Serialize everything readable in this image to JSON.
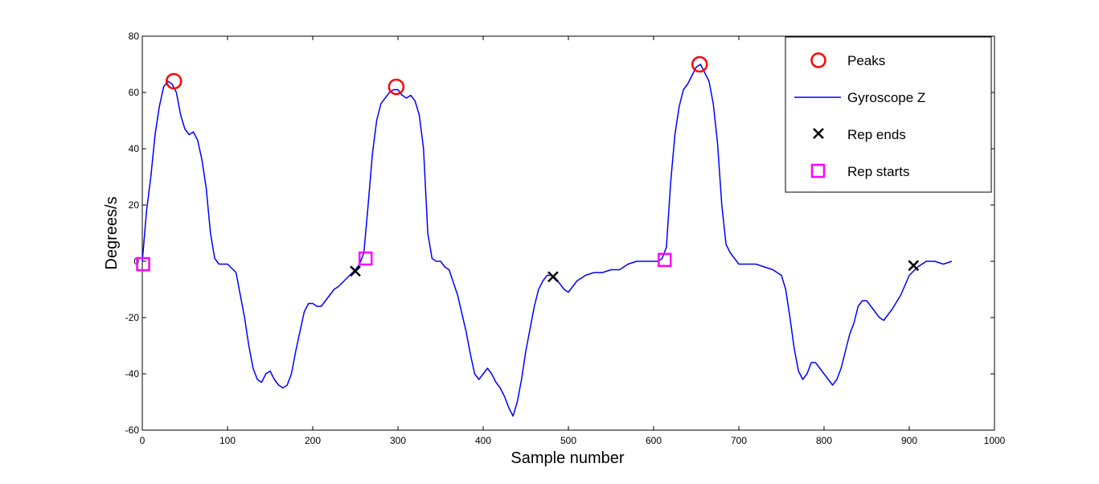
{
  "chart_data": {
    "type": "line",
    "title": "",
    "xlabel": "Sample number",
    "ylabel": "Degrees/s",
    "xlim": [
      0,
      1000
    ],
    "ylim": [
      -60,
      80
    ],
    "xticks": [
      0,
      100,
      200,
      300,
      400,
      500,
      600,
      700,
      800,
      900,
      1000
    ],
    "yticks": [
      -60,
      -40,
      -20,
      0,
      20,
      40,
      60,
      80
    ],
    "grid": false,
    "legend_position": "top-right",
    "colors": {
      "line": "#0000ff",
      "peaks": "#ff0000",
      "ends": "#000000",
      "starts": "#ff00ff"
    },
    "series": [
      {
        "name": "Peaks",
        "marker": "circle",
        "x": [
          37,
          298,
          654
        ],
        "y": [
          64,
          62,
          70
        ]
      },
      {
        "name": "Gyroscope Z",
        "marker": "line",
        "x": [
          0,
          5,
          10,
          15,
          20,
          25,
          30,
          35,
          40,
          45,
          50,
          55,
          60,
          65,
          70,
          75,
          80,
          85,
          90,
          95,
          100,
          110,
          120,
          125,
          130,
          135,
          140,
          145,
          150,
          155,
          160,
          165,
          170,
          175,
          180,
          185,
          190,
          195,
          200,
          205,
          210,
          215,
          220,
          225,
          230,
          240,
          250,
          255,
          260,
          265,
          270,
          275,
          280,
          285,
          290,
          295,
          300,
          305,
          310,
          315,
          320,
          325,
          330,
          335,
          340,
          345,
          350,
          355,
          360,
          370,
          380,
          385,
          390,
          395,
          400,
          405,
          410,
          415,
          420,
          425,
          430,
          435,
          440,
          445,
          450,
          455,
          460,
          465,
          470,
          475,
          480,
          485,
          490,
          495,
          500,
          505,
          510,
          515,
          520,
          530,
          540,
          550,
          560,
          570,
          580,
          590,
          600,
          605,
          610,
          615,
          620,
          625,
          630,
          635,
          640,
          645,
          650,
          655,
          660,
          665,
          670,
          675,
          680,
          685,
          690,
          695,
          700,
          710,
          720,
          730,
          740,
          750,
          755,
          760,
          765,
          770,
          775,
          780,
          785,
          790,
          795,
          800,
          805,
          810,
          815,
          820,
          825,
          830,
          835,
          840,
          845,
          850,
          855,
          860,
          865,
          870,
          880,
          890,
          900,
          910,
          920,
          930,
          940,
          950
        ],
        "y": [
          0,
          18,
          30,
          45,
          55,
          62,
          64,
          63,
          60,
          52,
          47,
          45,
          46,
          43,
          36,
          26,
          10,
          1,
          -1,
          -1,
          -1,
          -4,
          -20,
          -30,
          -38,
          -42,
          -43,
          -40,
          -39,
          -42,
          -44,
          -45,
          -44,
          -40,
          -32,
          -25,
          -18,
          -15,
          -15,
          -16,
          -16,
          -14,
          -12,
          -10,
          -9,
          -6,
          -3,
          -1,
          3,
          20,
          38,
          50,
          56,
          58,
          60,
          61,
          61,
          59,
          58,
          59,
          57,
          52,
          40,
          10,
          1,
          0,
          0,
          -2,
          -3,
          -12,
          -25,
          -33,
          -40,
          -42,
          -40,
          -38,
          -40,
          -43,
          -45,
          -48,
          -52,
          -55,
          -50,
          -42,
          -32,
          -24,
          -16,
          -10,
          -7,
          -5,
          -5,
          -6,
          -8,
          -10,
          -11,
          -9,
          -7,
          -6,
          -5,
          -4,
          -4,
          -3,
          -3,
          -1,
          0,
          0,
          0,
          0,
          1,
          5,
          28,
          45,
          55,
          61,
          63,
          66,
          69,
          70,
          67,
          64,
          56,
          42,
          20,
          6,
          3,
          1,
          -1,
          -1,
          -1,
          -2,
          -3,
          -5,
          -10,
          -20,
          -31,
          -39,
          -42,
          -40,
          -36,
          -36,
          -38,
          -40,
          -42,
          -44,
          -42,
          -38,
          -32,
          -26,
          -22,
          -16,
          -14,
          -14,
          -16,
          -18,
          -20,
          -21,
          -17,
          -12,
          -5,
          -2,
          0,
          0,
          -1,
          0
        ]
      },
      {
        "name": "Rep ends",
        "marker": "x",
        "x": [
          250,
          482,
          905
        ],
        "y": [
          -3.5,
          -5.5,
          -1.5
        ]
      },
      {
        "name": "Rep starts",
        "marker": "square",
        "x": [
          1,
          262,
          613
        ],
        "y": [
          -1,
          1,
          0.5
        ]
      }
    ]
  }
}
